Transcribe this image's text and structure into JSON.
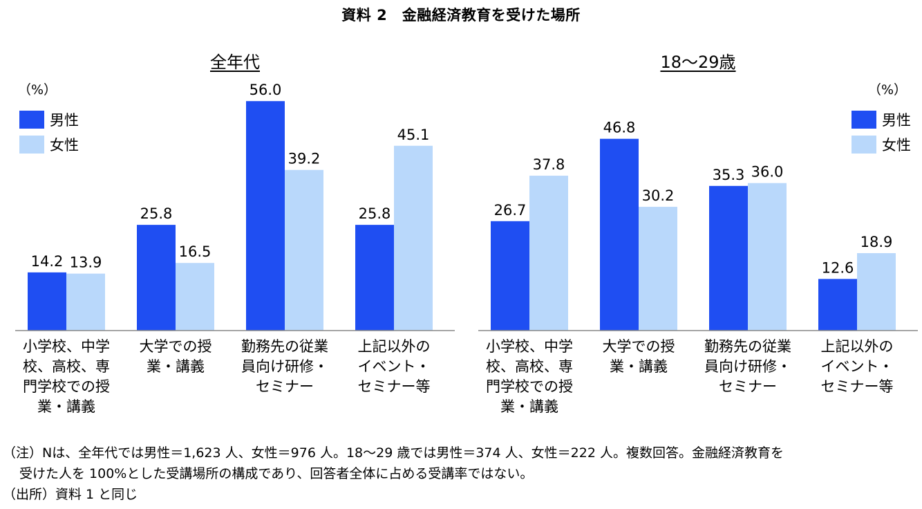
{
  "figure_title": "資料 2　金融経済教育を受けた場所",
  "colors": {
    "male": "#1f4ef2",
    "female": "#b9d8fb"
  },
  "legend": {
    "male": "男性",
    "female": "女性"
  },
  "unit": "（%）",
  "chart_data": [
    {
      "type": "bar",
      "title": "全年代",
      "categories": [
        [
          "小学校、中学",
          "校、高校、専",
          "門学校での授",
          "業・講義"
        ],
        [
          "大学での授",
          "業・講義"
        ],
        [
          "勤務先の従業",
          "員向け研修・",
          "セミナー"
        ],
        [
          "上記以外の",
          "イベント・",
          "セミナー等"
        ]
      ],
      "series": [
        {
          "name": "男性",
          "values": [
            14.2,
            25.8,
            56.0,
            25.8
          ],
          "labels": [
            "14.2",
            "25.8",
            "56.0",
            "25.8"
          ]
        },
        {
          "name": "女性",
          "values": [
            13.9,
            16.5,
            39.2,
            45.1
          ],
          "labels": [
            "13.9",
            "16.5",
            "39.2",
            "45.1"
          ]
        }
      ],
      "ylim": [
        0,
        60
      ],
      "legend_position": "top-left"
    },
    {
      "type": "bar",
      "title": "18〜29歳",
      "categories": [
        [
          "小学校、中学",
          "校、高校、専",
          "門学校での授",
          "業・講義"
        ],
        [
          "大学での授",
          "業・講義"
        ],
        [
          "勤務先の従業",
          "員向け研修・",
          "セミナー"
        ],
        [
          "上記以外の",
          "イベント・",
          "セミナー等"
        ]
      ],
      "series": [
        {
          "name": "男性",
          "values": [
            26.7,
            46.8,
            35.3,
            12.6
          ],
          "labels": [
            "26.7",
            "46.8",
            "35.3",
            "12.6"
          ]
        },
        {
          "name": "女性",
          "values": [
            37.8,
            30.2,
            36.0,
            18.9
          ],
          "labels": [
            "37.8",
            "30.2",
            "36.0",
            "18.9"
          ]
        }
      ],
      "ylim": [
        0,
        60
      ],
      "legend_position": "top-right"
    }
  ],
  "notes": [
    "（注）Nは、全年代では男性＝1,623 人、女性＝976 人。18〜29 歳では男性＝374 人、女性＝222 人。複数回答。金融経済教育を",
    "受けた人を 100%とした受講場所の構成であり、回答者全体に占める受講率ではない。",
    "（出所）資料 1 と同じ"
  ]
}
